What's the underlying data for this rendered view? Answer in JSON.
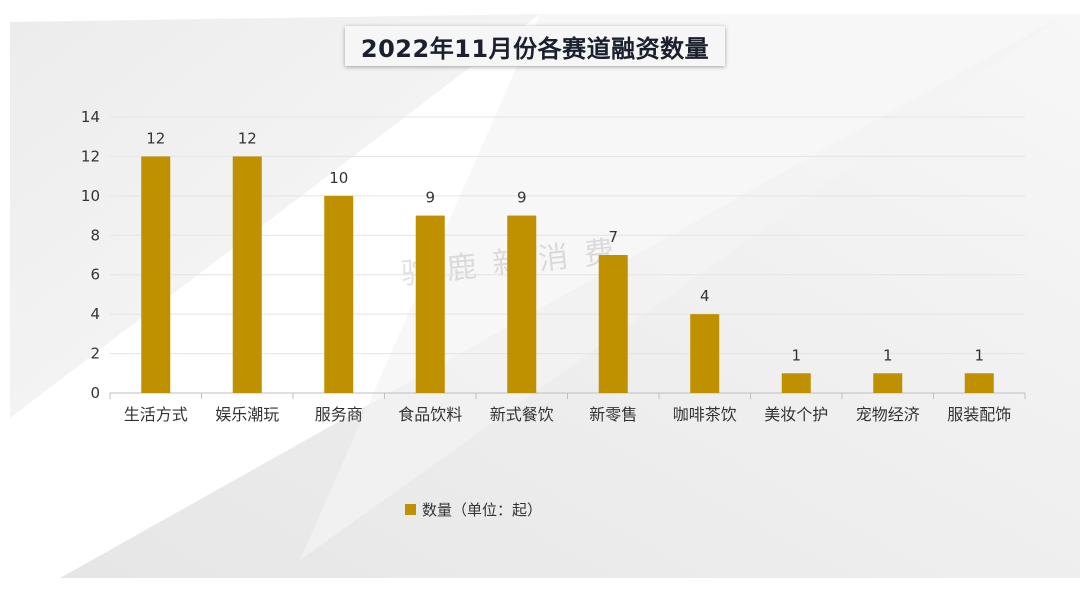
{
  "colors": {
    "bar": "#bf9000",
    "grid": "#e4e4e4",
    "text": "#333333",
    "axis": "#bfbfbf"
  },
  "watermark": "驼鹿新消费",
  "chart_data": {
    "type": "bar",
    "title": "2022年11月份各赛道融资数量",
    "categories": [
      "生活方式",
      "娱乐潮玩",
      "服务商",
      "食品饮料",
      "新式餐饮",
      "新零售",
      "咖啡茶饮",
      "美妆个护",
      "宠物经济",
      "服装配饰"
    ],
    "series": [
      {
        "name": "数量（单位：起）",
        "values": [
          12,
          12,
          10,
          9,
          9,
          7,
          4,
          1,
          1,
          1
        ]
      }
    ],
    "ylim": [
      0,
      14
    ],
    "yticks": [
      0,
      2,
      4,
      6,
      8,
      10,
      12,
      14
    ],
    "xlabel": "",
    "ylabel": "",
    "grid": true,
    "legend": "bottom-center",
    "data_labels": true
  }
}
